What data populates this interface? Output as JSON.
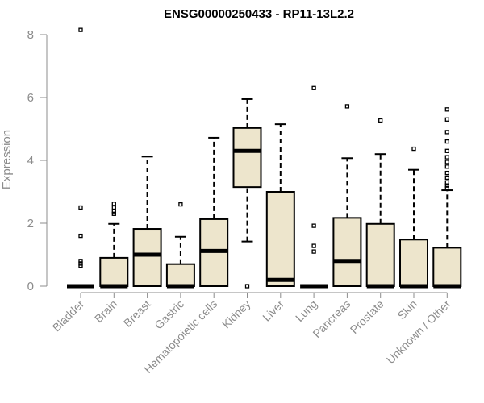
{
  "chart_data": {
    "type": "boxplot",
    "title": "ENSG00000250433 - RP11-13L2.2",
    "ylabel": "Expression",
    "xlabel": "",
    "ylim": [
      0,
      8.2
    ],
    "yticks": [
      0,
      2,
      4,
      6,
      8
    ],
    "grid": false,
    "box_fill": "#ede5cc",
    "categories": [
      "Bladder",
      "Brain",
      "Breast",
      "Gastric",
      "Hematopoietic cells",
      "Kidney",
      "Liver",
      "Lung",
      "Pancreas",
      "Prostate",
      "Skin",
      "Unknown / Other"
    ],
    "boxes": [
      {
        "category": "Bladder",
        "whisker_low": 0,
        "q1": 0,
        "median": 0,
        "q3": 0,
        "whisker_high": 0,
        "outliers": [
          8.15,
          2.5,
          1.6,
          0.8,
          0.72,
          0.65
        ]
      },
      {
        "category": "Brain",
        "whisker_low": 0,
        "q1": 0,
        "median": 0,
        "q3": 0.9,
        "whisker_high": 1.98,
        "outliers": [
          2.62,
          2.5,
          2.38,
          2.3
        ]
      },
      {
        "category": "Breast",
        "whisker_low": 0,
        "q1": 0,
        "median": 1.0,
        "q3": 1.82,
        "whisker_high": 4.12,
        "outliers": []
      },
      {
        "category": "Gastric",
        "whisker_low": 0,
        "q1": 0,
        "median": 0,
        "q3": 0.7,
        "whisker_high": 1.57,
        "outliers": [
          2.6
        ]
      },
      {
        "category": "Hematopoietic cells",
        "whisker_low": 0,
        "q1": 0,
        "median": 1.12,
        "q3": 2.13,
        "whisker_high": 4.72,
        "outliers": []
      },
      {
        "category": "Kidney",
        "whisker_low": 1.42,
        "q1": 3.15,
        "median": 4.3,
        "q3": 5.03,
        "whisker_high": 5.95,
        "outliers": [
          0
        ]
      },
      {
        "category": "Liver",
        "whisker_low": 0,
        "q1": 0,
        "median": 0.2,
        "q3": 3.0,
        "whisker_high": 5.15,
        "outliers": []
      },
      {
        "category": "Lung",
        "whisker_low": 0,
        "q1": 0,
        "median": 0,
        "q3": 0,
        "whisker_high": 0,
        "outliers": [
          6.3,
          1.92,
          1.28,
          1.1
        ]
      },
      {
        "category": "Pancreas",
        "whisker_low": 0,
        "q1": 0,
        "median": 0.8,
        "q3": 2.17,
        "whisker_high": 4.07,
        "outliers": [
          5.72
        ]
      },
      {
        "category": "Prostate",
        "whisker_low": 0,
        "q1": 0,
        "median": 0,
        "q3": 1.98,
        "whisker_high": 4.2,
        "outliers": [
          5.27
        ]
      },
      {
        "category": "Skin",
        "whisker_low": 0,
        "q1": 0,
        "median": 0,
        "q3": 1.48,
        "whisker_high": 3.7,
        "outliers": [
          4.37
        ]
      },
      {
        "category": "Unknown / Other",
        "whisker_low": 0,
        "q1": 0,
        "median": 0,
        "q3": 1.22,
        "whisker_high": 3.05,
        "outliers": [
          5.62,
          5.3,
          4.9,
          4.6,
          4.3,
          4.1,
          3.95,
          3.8,
          3.6,
          3.45,
          3.3,
          3.2,
          3.12
        ]
      }
    ]
  }
}
